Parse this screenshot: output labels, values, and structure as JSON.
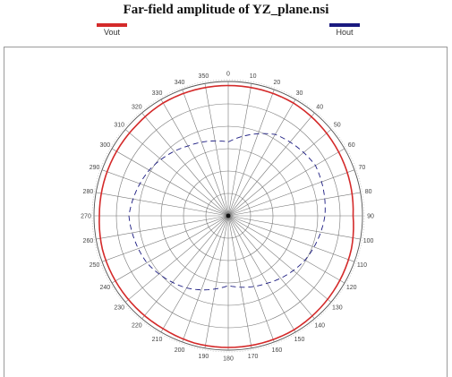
{
  "chart_data": {
    "type": "polar",
    "title": "Far-field amplitude of YZ_plane.nsi",
    "legend": {
      "placement": "top"
    },
    "series": [
      {
        "name": "Vout",
        "color": "#d42a2a",
        "style": "solid",
        "angles_deg": [
          0,
          15,
          30,
          45,
          60,
          75,
          90,
          105,
          120,
          135,
          150,
          165,
          180,
          195,
          210,
          225,
          240,
          255,
          270,
          285,
          300,
          315,
          330,
          345
        ],
        "values": [
          0.97,
          0.97,
          0.97,
          0.96,
          0.95,
          0.94,
          0.93,
          0.95,
          0.96,
          0.97,
          0.98,
          0.98,
          0.98,
          0.98,
          0.97,
          0.97,
          0.97,
          0.97,
          0.96,
          0.96,
          0.96,
          0.96,
          0.97,
          0.97
        ]
      },
      {
        "name": "Hout",
        "color": "#1a1a80",
        "style": "dashed",
        "angles_deg": [
          0,
          30,
          60,
          90,
          120,
          150,
          180,
          210,
          240,
          270,
          300,
          330
        ],
        "values": [
          0.55,
          0.7,
          0.75,
          0.72,
          0.66,
          0.58,
          0.52,
          0.62,
          0.7,
          0.74,
          0.68,
          0.6
        ]
      }
    ],
    "angle_ticks": [
      "0",
      "10",
      "20",
      "30",
      "40",
      "50",
      "60",
      "70",
      "80",
      "90",
      "100",
      "110",
      "120",
      "130",
      "140",
      "150",
      "160",
      "170",
      "180",
      "190",
      "200",
      "210",
      "220",
      "230",
      "240",
      "250",
      "260",
      "270",
      "280",
      "290",
      "300",
      "310",
      "320",
      "330",
      "340",
      "350"
    ],
    "radial_rings": 6,
    "grid": true
  }
}
